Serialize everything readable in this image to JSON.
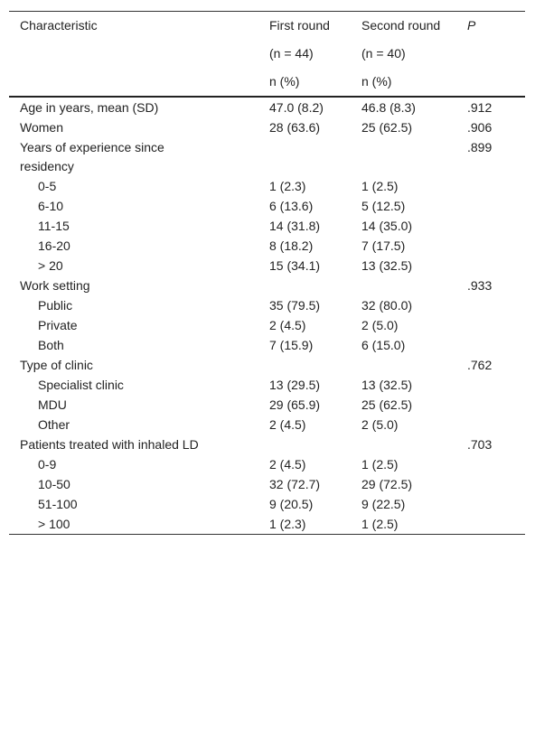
{
  "table": {
    "header": {
      "characteristic": "Characteristic",
      "first": "First round",
      "second": "Second round",
      "p": "P",
      "first_n": "(n = 44)",
      "second_n": "(n = 40)",
      "first_unit": "n (%)",
      "second_unit": "n (%)"
    },
    "rows": [
      {
        "label": "Age in years, mean (SD)",
        "first": "47.0 (8.2)",
        "second": "46.8 (8.3)",
        "p": ".912"
      },
      {
        "label": "Women",
        "first": "28 (63.6)",
        "second": "25 (62.5)",
        "p": ".906"
      },
      {
        "label": "Years of experience since residency",
        "p": ".899",
        "items": [
          {
            "label": "0-5",
            "first": "1 (2.3)",
            "second": "1 (2.5)"
          },
          {
            "label": "6-10",
            "first": "6 (13.6)",
            "second": "5 (12.5)"
          },
          {
            "label": "11-15",
            "first": "14 (31.8)",
            "second": "14 (35.0)"
          },
          {
            "label": "16-20",
            "first": "8 (18.2)",
            "second": "7 (17.5)"
          },
          {
            "label": "> 20",
            "first": "15 (34.1)",
            "second": "13 (32.5)"
          }
        ]
      },
      {
        "label": "Work setting",
        "p": ".933",
        "items": [
          {
            "label": "Public",
            "first": "35 (79.5)",
            "second": "32 (80.0)"
          },
          {
            "label": "Private",
            "first": "2 (4.5)",
            "second": "2 (5.0)"
          },
          {
            "label": "Both",
            "first": "7 (15.9)",
            "second": "6 (15.0)"
          }
        ]
      },
      {
        "label": "Type of clinic",
        "p": ".762",
        "items": [
          {
            "label": "Specialist clinic",
            "first": "13 (29.5)",
            "second": "13 (32.5)"
          },
          {
            "label": "MDU",
            "first": "29 (65.9)",
            "second": "25 (62.5)"
          },
          {
            "label": "Other",
            "first": "2 (4.5)",
            "second": "2 (5.0)"
          }
        ]
      },
      {
        "label": "Patients treated with inhaled LD",
        "p": ".703",
        "items": [
          {
            "label": "0-9",
            "first": "2 (4.5)",
            "second": "1 (2.5)"
          },
          {
            "label": "10-50",
            "first": "32 (72.7)",
            "second": "29 (72.5)"
          },
          {
            "label": "51-100",
            "first": "9 (20.5)",
            "second": "9 (22.5)"
          },
          {
            "label": "> 100",
            "first": "1 (2.3)",
            "second": "1 (2.5)"
          }
        ]
      }
    ]
  }
}
